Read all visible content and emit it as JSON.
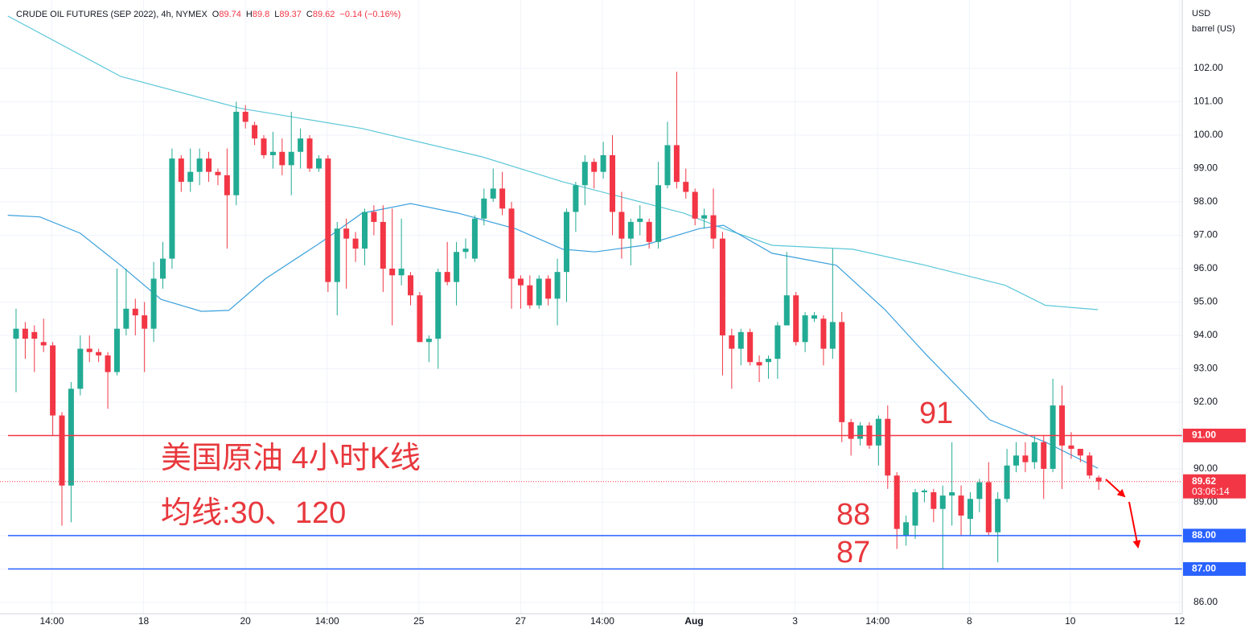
{
  "chart_data": {
    "type": "candlestick",
    "title": "CRUDE OIL FUTURES (SEP 2022), 4h, NYMEX",
    "ohlc": [
      {
        "label": "O",
        "value": 89.74
      },
      {
        "label": "H",
        "value": 89.8
      },
      {
        "label": "L",
        "value": 89.37
      },
      {
        "label": "C",
        "value": 89.62
      }
    ],
    "change": "−0.14 (−0.16%)",
    "unit": "USD",
    "unit_sub": "barrel (US)",
    "up_color": "#22ab94",
    "down_color": "#f23645",
    "grid": true,
    "x": [
      0,
      1,
      2,
      3,
      4,
      5,
      6,
      7,
      8,
      9,
      10,
      11,
      12,
      13,
      14,
      15,
      16,
      17,
      18,
      19,
      20,
      21,
      22,
      23,
      24,
      25,
      26,
      27,
      28,
      29,
      30,
      31,
      32,
      33,
      34,
      35,
      36,
      37,
      38,
      39,
      40,
      41,
      42,
      43,
      44,
      45,
      46,
      47,
      48,
      49,
      50,
      51,
      52,
      53,
      54,
      55,
      56,
      57,
      58,
      59,
      60,
      61,
      62,
      63,
      64,
      65,
      66,
      67,
      68,
      69,
      70,
      71,
      72,
      73,
      74,
      75,
      76,
      77,
      78,
      79,
      80,
      81,
      82,
      83,
      84,
      85,
      86,
      87,
      88,
      89,
      90,
      91,
      92,
      93,
      94,
      95,
      96,
      97,
      98,
      99,
      100,
      101,
      102,
      103,
      104,
      105,
      106,
      107,
      108,
      109,
      110,
      111,
      112,
      113,
      114,
      115,
      116,
      117,
      118
    ],
    "open": [
      93.9,
      94.2,
      94.1,
      93.8,
      93.7,
      91.6,
      89.5,
      92.4,
      93.6,
      93.5,
      93.4,
      92.9,
      94.2,
      94.8,
      94.6,
      94.2,
      95.7,
      96.3,
      99.3,
      98.6,
      98.9,
      99.3,
      98.9,
      98.8,
      98.2,
      100.7,
      100.3,
      99.9,
      99.4,
      99.5,
      99.1,
      99.5,
      99.9,
      99.0,
      99.3,
      95.6,
      97.2,
      96.9,
      96.6,
      97.7,
      97.4,
      96.0,
      95.8,
      95.8,
      95.2,
      93.8,
      93.9,
      95.9,
      95.6,
      96.5,
      96.3,
      97.5,
      98.1,
      98.4,
      97.8,
      95.7,
      95.5,
      94.9,
      95.7,
      95.1,
      95.9,
      97.7,
      98.5,
      99.2,
      98.9,
      99.4,
      97.7,
      96.9,
      97.4,
      97.4,
      96.8,
      98.5,
      99.7,
      98.6,
      98.3,
      97.5,
      97.6,
      96.9,
      94.0,
      93.6,
      94.1,
      93.2,
      93.2,
      93.3,
      94.3,
      95.2,
      93.8,
      94.5,
      94.5,
      93.6,
      94.4,
      91.4,
      90.9,
      91.3,
      90.7,
      91.5,
      89.8,
      88.0,
      88.3,
      89.3,
      89.3,
      88.8,
      89.2,
      89.2,
      88.5,
      89.1,
      89.6,
      88.1,
      89.1,
      90.1,
      90.4,
      90.2,
      90.8,
      90.0,
      91.9,
      90.7,
      90.6,
      90.4,
      89.74
    ],
    "high": [
      94.8,
      94.4,
      94.3,
      94.5,
      93.8,
      91.7,
      92.6,
      94.0,
      94.0,
      93.6,
      93.5,
      96.0,
      96.0,
      95.1,
      95.0,
      96.2,
      96.8,
      99.6,
      99.4,
      99.6,
      99.6,
      99.5,
      99.0,
      99.6,
      101.0,
      100.9,
      100.4,
      100.0,
      100.1,
      99.9,
      100.7,
      100.2,
      100.0,
      99.4,
      99.4,
      97.4,
      97.5,
      97.1,
      97.8,
      97.9,
      97.9,
      97.8,
      97.5,
      95.9,
      95.3,
      94.0,
      96.0,
      96.8,
      96.8,
      96.9,
      97.6,
      98.4,
      99.0,
      98.9,
      98.0,
      95.8,
      95.8,
      95.8,
      95.8,
      96.3,
      97.8,
      98.6,
      99.4,
      99.3,
      99.8,
      100.0,
      98.3,
      97.5,
      97.9,
      97.5,
      99.2,
      100.4,
      101.9,
      99.0,
      98.4,
      97.8,
      98.4,
      97.1,
      94.2,
      94.2,
      94.2,
      93.4,
      93.4,
      94.4,
      96.5,
      95.3,
      94.7,
      94.7,
      94.6,
      96.6,
      94.7,
      91.5,
      91.4,
      91.4,
      91.6,
      91.9,
      89.9,
      88.6,
      89.4,
      89.4,
      89.4,
      89.5,
      90.8,
      89.5,
      89.3,
      89.7,
      90.2,
      89.3,
      90.6,
      90.8,
      90.8,
      91.0,
      91.0,
      92.7,
      92.5,
      91.1,
      90.6,
      90.5,
      89.8
    ],
    "low": [
      92.3,
      93.3,
      92.9,
      93.5,
      91.0,
      88.3,
      88.4,
      92.2,
      93.2,
      93.2,
      91.8,
      92.8,
      94.0,
      94.0,
      92.9,
      93.8,
      95.4,
      96.0,
      98.3,
      98.3,
      98.5,
      98.6,
      98.5,
      96.6,
      97.9,
      100.2,
      99.7,
      99.3,
      99.0,
      98.8,
      98.2,
      99.0,
      98.9,
      98.9,
      95.3,
      94.6,
      95.4,
      96.2,
      96.1,
      97.0,
      95.3,
      94.3,
      95.5,
      94.9,
      93.8,
      93.2,
      93.0,
      95.5,
      94.9,
      96.3,
      96.2,
      97.3,
      98.0,
      97.6,
      94.8,
      94.8,
      94.8,
      94.8,
      94.9,
      94.3,
      95.0,
      97.1,
      97.9,
      98.4,
      98.7,
      97.0,
      96.3,
      96.1,
      97.0,
      96.6,
      96.6,
      98.4,
      98.4,
      98.1,
      97.3,
      97.2,
      96.6,
      92.8,
      92.4,
      93.1,
      93.1,
      92.6,
      92.7,
      92.7,
      94.3,
      93.7,
      93.5,
      94.4,
      93.1,
      93.3,
      90.8,
      90.4,
      90.7,
      90.6,
      90.1,
      89.4,
      87.6,
      87.7,
      87.9,
      89.0,
      88.4,
      87.0,
      88.3,
      88.0,
      88.0,
      88.7,
      88.0,
      87.2,
      89.0,
      89.9,
      89.9,
      90.0,
      89.1,
      89.9,
      89.4,
      90.3,
      90.2,
      89.7,
      89.37
    ],
    "close": [
      94.2,
      93.9,
      93.9,
      93.7,
      91.6,
      89.5,
      92.4,
      93.6,
      93.5,
      93.4,
      92.9,
      94.2,
      94.8,
      94.6,
      94.2,
      95.7,
      96.3,
      99.3,
      98.6,
      98.9,
      99.3,
      98.9,
      98.8,
      98.2,
      100.7,
      100.4,
      99.9,
      99.4,
      99.5,
      99.1,
      99.5,
      99.9,
      99.0,
      99.3,
      95.6,
      97.2,
      96.9,
      96.6,
      97.7,
      97.4,
      96.0,
      95.8,
      96.0,
      95.2,
      93.8,
      93.9,
      95.9,
      95.6,
      96.5,
      96.6,
      97.5,
      98.1,
      98.4,
      97.8,
      95.7,
      95.5,
      94.9,
      95.7,
      95.1,
      95.9,
      97.7,
      98.5,
      99.2,
      98.9,
      99.4,
      97.7,
      96.9,
      97.4,
      97.5,
      96.8,
      98.5,
      99.7,
      98.6,
      98.3,
      97.5,
      97.6,
      96.9,
      94.0,
      93.6,
      94.1,
      93.2,
      93.1,
      93.3,
      94.3,
      95.2,
      93.8,
      94.6,
      94.6,
      93.6,
      94.4,
      91.4,
      90.9,
      91.3,
      90.7,
      91.5,
      89.8,
      88.2,
      88.4,
      89.3,
      89.35,
      88.8,
      89.2,
      89.3,
      88.6,
      89.1,
      89.6,
      88.1,
      89.1,
      90.1,
      90.4,
      90.2,
      90.8,
      90.0,
      91.9,
      90.7,
      90.6,
      90.4,
      89.8,
      89.62
    ],
    "series": [
      {
        "color": "#5bc7d8",
        "x": [
          -0.9,
          11.4,
          24.5,
          37.7,
          50.8,
          59.6,
          72.8,
          77.1,
          82.4,
          91.2,
          99.1,
          107.8,
          112.2,
          117.9
        ],
        "values": [
          103.57,
          101.76,
          100.8,
          100.2,
          99.35,
          98.6,
          97.66,
          97.2,
          96.7,
          96.58,
          96.1,
          95.5,
          94.9,
          94.77
        ]
      },
      {
        "color": "#3aa0dc",
        "x": [
          -0.9,
          2.6,
          7.0,
          11.4,
          15.8,
          20.2,
          23.2,
          27.2,
          33.3,
          37.7,
          43.0,
          48.2,
          54.4,
          59.6,
          63.1,
          68.4,
          74.5,
          77.1,
          82.4,
          89.4,
          94.7,
          99.1,
          106.1,
          112.2,
          117.9
        ],
        "values": [
          97.6,
          97.55,
          97.06,
          96.1,
          95.08,
          94.72,
          94.75,
          95.7,
          96.8,
          97.66,
          97.95,
          97.66,
          97.2,
          96.58,
          96.5,
          96.7,
          97.2,
          97.3,
          96.46,
          96.1,
          94.77,
          93.45,
          91.47,
          90.8,
          90.02
        ]
      }
    ],
    "levels": [
      {
        "value": 91,
        "label": "91.00",
        "color": "#f23645"
      },
      {
        "value": 88,
        "label": "88.00",
        "color": "#2962ff"
      },
      {
        "value": 87,
        "label": "87.00",
        "color": "#2962ff"
      }
    ],
    "last_price": 89.62,
    "countdown": "03:06:14",
    "annotations": [
      "美国原油 4小时K线",
      "均线:30、120",
      "91",
      "88",
      "87"
    ],
    "xlim": [
      -1.75,
      127.1
    ],
    "xticks": [
      {
        "value": 3.9,
        "label": "14:00"
      },
      {
        "value": 13.9,
        "label": "18"
      },
      {
        "value": 25.0,
        "label": "20"
      },
      {
        "value": 33.9,
        "label": "14:00"
      },
      {
        "value": 43.9,
        "label": "25"
      },
      {
        "value": 55.0,
        "label": "27"
      },
      {
        "value": 63.9,
        "label": "14:00"
      },
      {
        "value": 73.9,
        "label": "Aug"
      },
      {
        "value": 84.9,
        "label": "3"
      },
      {
        "value": 93.9,
        "label": "14:00"
      },
      {
        "value": 103.9,
        "label": "8"
      },
      {
        "value": 114.9,
        "label": "10"
      },
      {
        "value": 126.8,
        "label": "12"
      }
    ],
    "ylim": [
      85.66,
      104.05
    ],
    "yticks": [
      {
        "value": 86,
        "label": "86.00"
      },
      {
        "value": 87,
        "label": "87.00"
      },
      {
        "value": 88,
        "label": "88.00"
      },
      {
        "value": 89,
        "label": "89.00"
      },
      {
        "value": 90,
        "label": "90.00"
      },
      {
        "value": 91,
        "label": "91.00"
      },
      {
        "value": 92,
        "label": "92.00"
      },
      {
        "value": 93,
        "label": "93.00"
      },
      {
        "value": 94,
        "label": "94.00"
      },
      {
        "value": 95,
        "label": "95.00"
      },
      {
        "value": 96,
        "label": "96.00"
      },
      {
        "value": 97,
        "label": "97.00"
      },
      {
        "value": 98,
        "label": "98.00"
      },
      {
        "value": 99,
        "label": "99.00"
      },
      {
        "value": 100,
        "label": "100.00"
      },
      {
        "value": 101,
        "label": "101.00"
      },
      {
        "value": 102,
        "label": "102.00"
      }
    ]
  }
}
